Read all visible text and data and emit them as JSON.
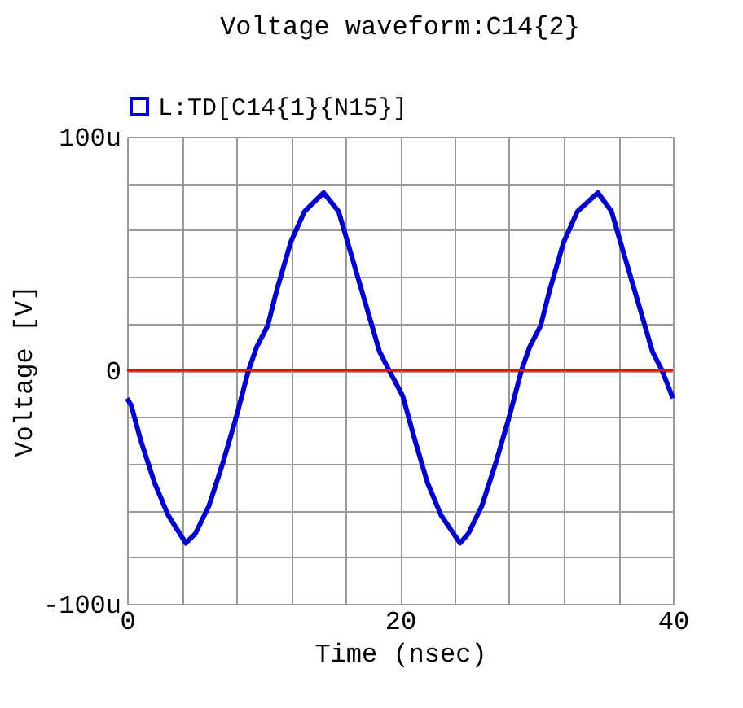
{
  "chart_data": {
    "type": "line",
    "title": "Voltage waveform:C14{2}",
    "xlabel": "Time (nsec)",
    "ylabel": "Voltage [V]",
    "x": [
      0,
      0.3,
      1,
      2,
      3,
      4.3,
      5,
      6,
      7,
      8,
      8.9,
      9.5,
      10.3,
      11,
      12,
      13,
      14.4,
      15.5,
      16.5,
      17.5,
      18.5,
      19.2,
      20.2,
      21,
      22,
      23,
      24.4,
      25,
      26,
      27,
      28,
      28.9,
      29.5,
      30.3,
      31,
      32,
      33,
      34.5,
      35.5,
      36.5,
      37.5,
      38.5,
      39.2,
      40
    ],
    "series": [
      {
        "name": "L:TD[C14{1}{N15}]",
        "color": "#0000cc",
        "values": [
          -12,
          -15,
          -30,
          -48,
          -62,
          -74,
          -70,
          -58,
          -40,
          -20,
          0,
          10,
          19,
          35,
          55,
          68,
          76,
          68,
          48,
          28,
          8,
          0,
          -11,
          -28,
          -48,
          -62,
          -74,
          -70,
          -58,
          -40,
          -20,
          0,
          10,
          19,
          35,
          55,
          68,
          76,
          68,
          48,
          28,
          8,
          0,
          -12
        ]
      }
    ],
    "xlim": [
      0,
      40
    ],
    "xticks": [
      0,
      {
        "value": 4,
        "label": null
      },
      {
        "value": 8,
        "label": null
      },
      {
        "value": 12,
        "label": null
      },
      {
        "value": 16,
        "label": null
      },
      20,
      {
        "value": 24,
        "label": null
      },
      {
        "value": 28,
        "label": null
      },
      {
        "value": 32,
        "label": null
      },
      {
        "value": 36,
        "label": null
      },
      40
    ],
    "ylim": [
      -100,
      100
    ],
    "yticks": [
      {
        "value": -100,
        "label": "-100u"
      },
      {
        "value": -80,
        "label": null
      },
      {
        "value": -60,
        "label": null
      },
      {
        "value": -40,
        "label": null
      },
      {
        "value": -20,
        "label": null
      },
      0,
      {
        "value": 20,
        "label": null
      },
      {
        "value": 40,
        "label": null
      },
      {
        "value": 60,
        "label": null
      },
      {
        "value": 80,
        "label": null
      },
      {
        "value": 100,
        "label": "100u"
      }
    ],
    "ref_lines": [
      {
        "axis": "y",
        "value": 0,
        "color": "#ff0000"
      }
    ],
    "grid": true,
    "legend": "top left"
  }
}
